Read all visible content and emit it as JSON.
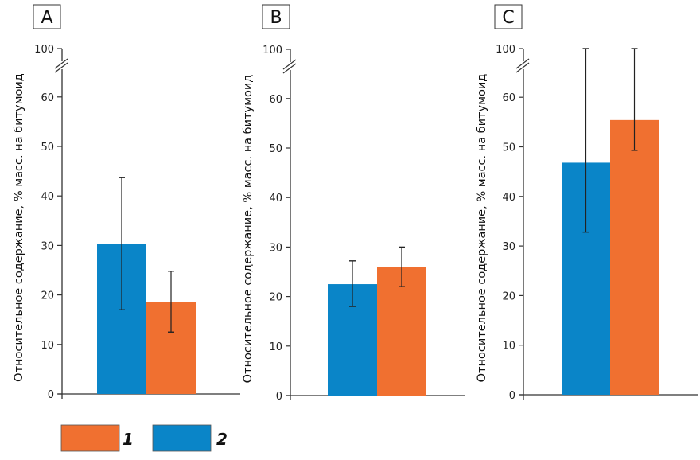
{
  "chart_data": [
    {
      "type": "bar",
      "panel": "A",
      "title": "A",
      "ylabel": "Относительное содержание, % масс. на битумоид",
      "xlabel": "",
      "ylim": [
        0,
        100
      ],
      "axis_break": [
        60,
        100
      ],
      "yticks": [
        0,
        10,
        20,
        30,
        40,
        50,
        60,
        100
      ],
      "grid": false,
      "series": [
        {
          "name": "2",
          "color": "#0a85c8",
          "value": 30.3,
          "error_low": 17.0,
          "error_high": 43.7
        },
        {
          "name": "1",
          "color": "#f07030",
          "value": 18.5,
          "error_low": 12.5,
          "error_high": 24.8
        }
      ]
    },
    {
      "type": "bar",
      "panel": "B",
      "title": "B",
      "ylabel": "Относительное содержание, % масс. на битумоид",
      "xlabel": "",
      "ylim": [
        0,
        100
      ],
      "axis_break": [
        60,
        100
      ],
      "yticks": [
        0,
        10,
        20,
        30,
        40,
        50,
        60,
        100
      ],
      "grid": false,
      "series": [
        {
          "name": "2",
          "color": "#0a85c8",
          "value": 22.5,
          "error_low": 18.0,
          "error_high": 27.2
        },
        {
          "name": "1",
          "color": "#f07030",
          "value": 26.0,
          "error_low": 22.0,
          "error_high": 30.0
        }
      ]
    },
    {
      "type": "bar",
      "panel": "C",
      "title": "C",
      "ylabel": "Относительное содержание, % масс. на битумоид",
      "xlabel": "",
      "ylim": [
        0,
        100
      ],
      "axis_break": [
        60,
        100
      ],
      "yticks": [
        0,
        10,
        20,
        30,
        40,
        50,
        60,
        100
      ],
      "grid": false,
      "series": [
        {
          "name": "2",
          "color": "#0a85c8",
          "value": 46.8,
          "error_low": 32.8,
          "error_high": 61.2
        },
        {
          "name": "1",
          "color": "#f07030",
          "value": 55.4,
          "error_low": 49.3,
          "error_high": 61.3
        }
      ]
    }
  ],
  "legend": {
    "placement": "bottom-left",
    "items": [
      {
        "label": "1",
        "color": "#f07030"
      },
      {
        "label": "2",
        "color": "#0a85c8"
      }
    ]
  }
}
